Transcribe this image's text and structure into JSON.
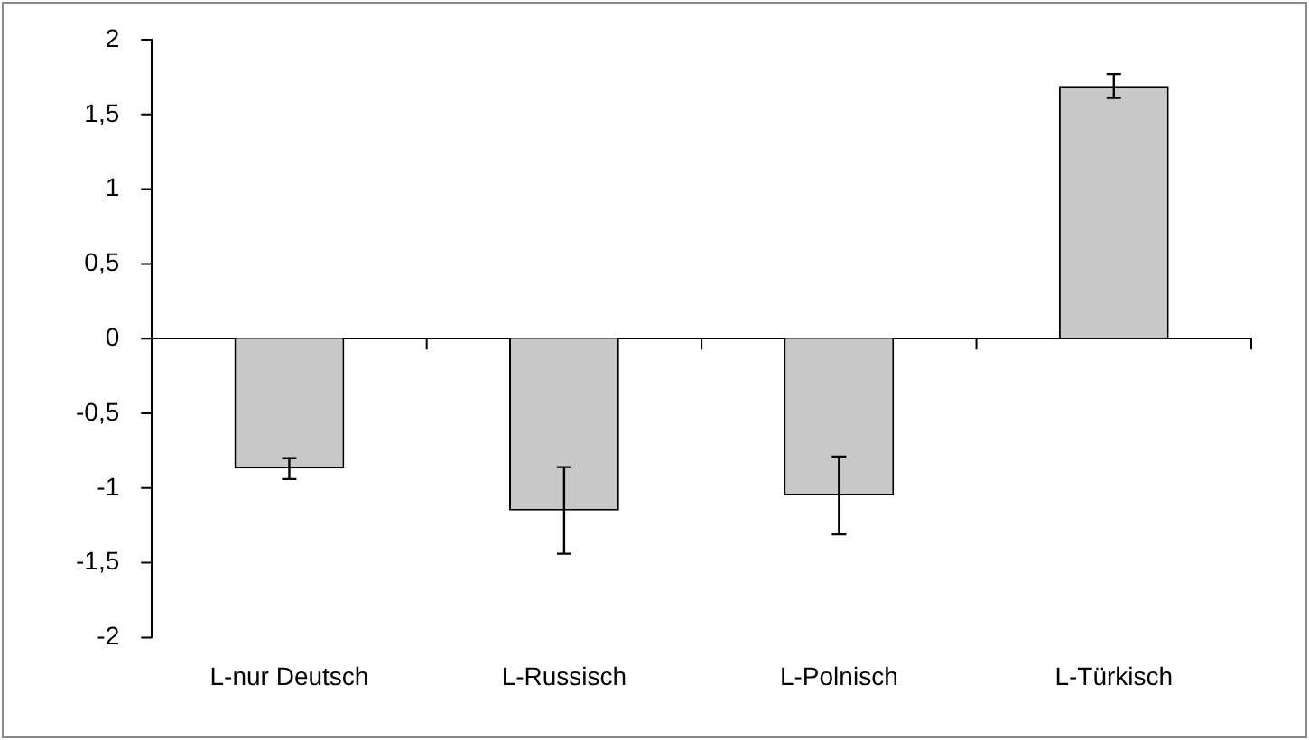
{
  "chart_data": {
    "type": "bar",
    "categories": [
      "L-nur Deutsch",
      "L-Russisch",
      "L-Polnisch",
      "L-Türkisch"
    ],
    "values": [
      -0.87,
      -1.15,
      -1.05,
      1.69
    ],
    "errors": [
      0.07,
      0.29,
      0.26,
      0.08
    ],
    "color": "#c8c8c8",
    "ylim": [
      -2,
      2
    ],
    "yticks": [
      -2,
      {
        "value": -1.5,
        "label": "-1,5"
      },
      -1,
      {
        "value": -0.5,
        "label": "-0,5"
      },
      0,
      {
        "value": 0.5,
        "label": "0,5"
      },
      1,
      {
        "value": 1.5,
        "label": "1,5"
      },
      2
    ],
    "legend": false
  }
}
